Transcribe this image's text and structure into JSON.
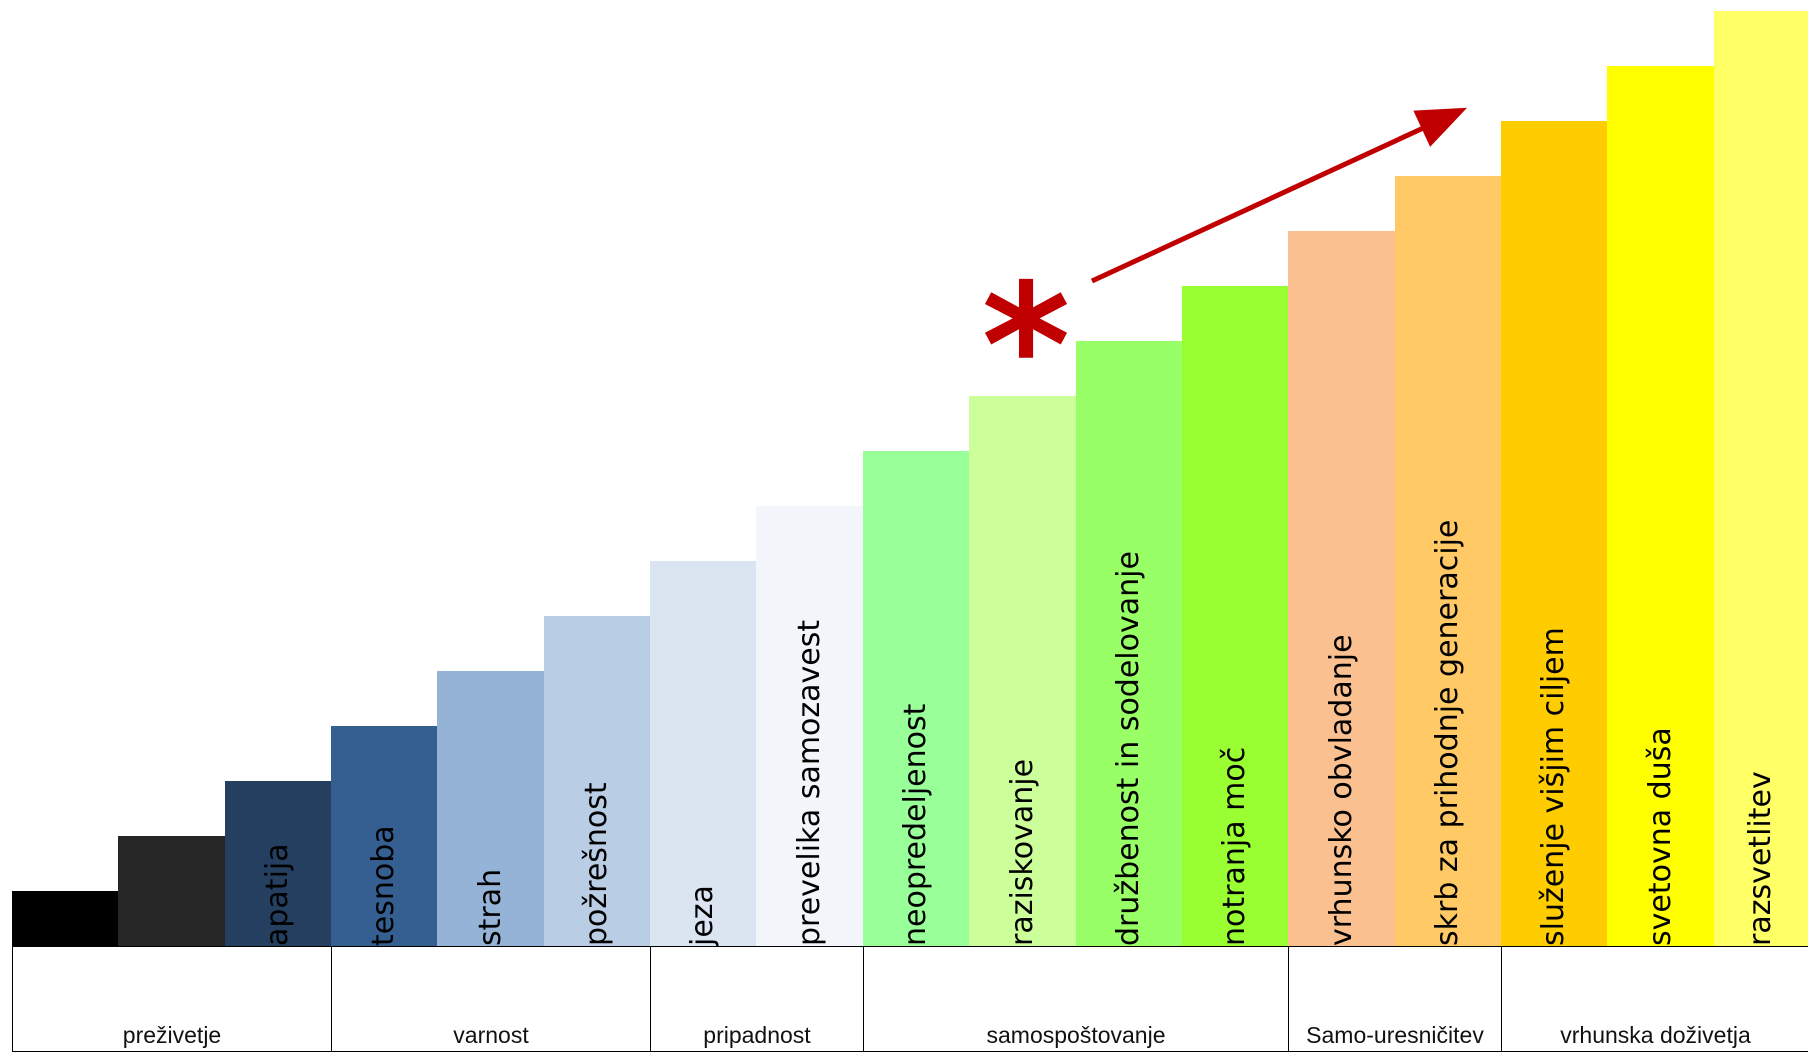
{
  "chart_data": {
    "type": "bar",
    "categories": [
      "",
      "",
      "apatija",
      "tesnoba",
      "strah",
      "požrešnost",
      "jeza",
      "prevelika samozavest",
      "neopredeljenost",
      "raziskovanje",
      "družbenost in sodelovanje",
      "notranja moč",
      "vrhunsko obvladanje",
      "skrb za prihodnje generacije",
      "služenje višjim ciljem",
      "svetovna duša",
      "razsvetlitev"
    ],
    "values": [
      1,
      2,
      3,
      4,
      5,
      6,
      7,
      8,
      9,
      10,
      11,
      12,
      13,
      14,
      15,
      16,
      17
    ],
    "colors": [
      "#000000",
      "#262626",
      "#243f60",
      "#355f91",
      "#95b3d7",
      "#b9cde4",
      "#dbe5f1",
      "#f2f6fa",
      "#99ff99",
      "#ccff99",
      "#99ff66",
      "#99ff33",
      "#fac090",
      "#ffc966",
      "#ffcc00",
      "#ffff00",
      "#ffff66"
    ],
    "ylim": [
      0,
      17
    ],
    "grid": false,
    "groups": [
      {
        "label": "preživetje",
        "start": 0,
        "count": 3
      },
      {
        "label": "varnost",
        "start": 3,
        "count": 3
      },
      {
        "label": "pripadnost",
        "start": 6,
        "count": 2
      },
      {
        "label": "samospoštovanje",
        "start": 8,
        "count": 4
      },
      {
        "label": "Samo-uresničitev",
        "start": 12,
        "count": 2
      },
      {
        "label": "vrhunska doživetja",
        "start": 14,
        "count": 3
      }
    ],
    "annotation": {
      "symbol": "*",
      "color": "#c00000"
    }
  }
}
